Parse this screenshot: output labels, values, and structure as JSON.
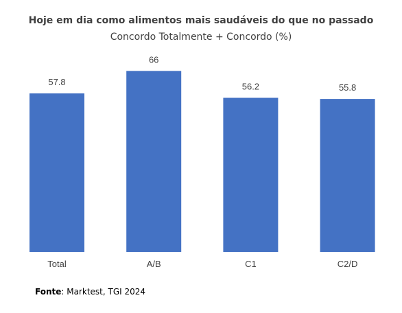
{
  "chart_data": {
    "type": "bar",
    "title": "Hoje em dia como alimentos mais saudáveis do que no passado",
    "subtitle": "Concordo Totalmente + Concordo (%)",
    "categories": [
      "Total",
      "A/B",
      "C1",
      "C2/D"
    ],
    "values": [
      57.8,
      66,
      56.2,
      55.8
    ],
    "data_labels": [
      "57.8",
      "66",
      "56.2",
      "55.8"
    ],
    "xlabel": "",
    "ylabel": "",
    "ylim": [
      0,
      70
    ],
    "grid": false,
    "legend": "none",
    "bar_color": "#4472C4"
  },
  "footnote": {
    "label": "Fonte",
    "text": ": Marktest, TGI 2024"
  }
}
